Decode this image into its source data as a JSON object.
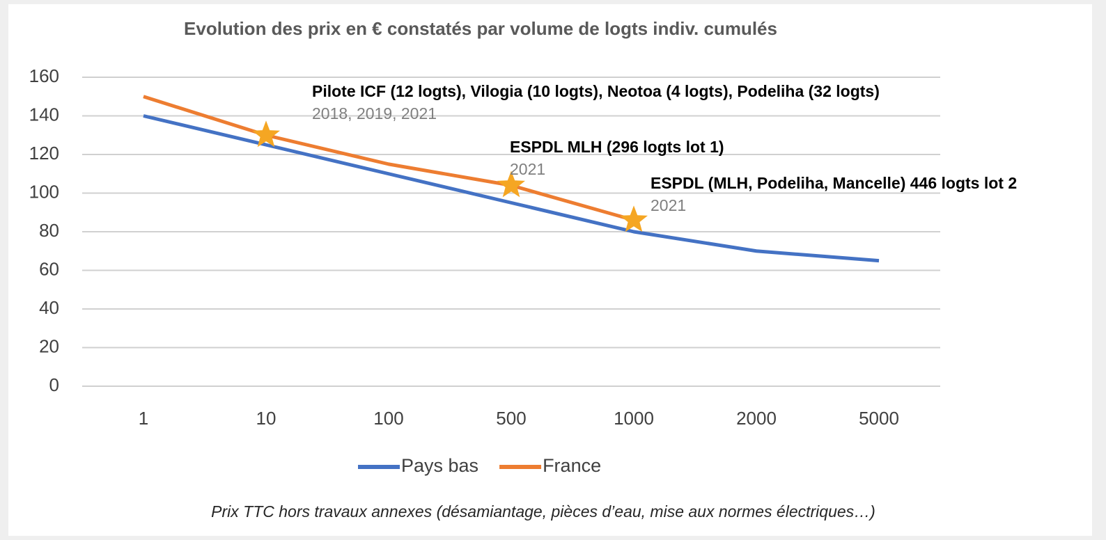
{
  "chart_data": {
    "type": "line",
    "title": "Evolution des prix en € constatés par volume de logts indiv. cumulés",
    "categories": [
      "1",
      "10",
      "100",
      "500",
      "1000",
      "2000",
      "5000"
    ],
    "series": [
      {
        "name": "Pays bas",
        "color": "#4472c4",
        "values": [
          140,
          125,
          110,
          95,
          80,
          70,
          65
        ]
      },
      {
        "name": "France",
        "color": "#ed7d31",
        "values": [
          150,
          130,
          115,
          104,
          86,
          null,
          null
        ]
      }
    ],
    "ylim": [
      0,
      160
    ],
    "yticks": [
      0,
      20,
      40,
      60,
      80,
      100,
      120,
      140,
      160
    ],
    "grid": true,
    "legend": "bottom",
    "annotations": [
      {
        "text": "Pilote ICF (12 logts), Vilogia (10 logts), Neotoa (4 logts), Podeliha (32 logts)",
        "subtext": "2018, 2019, 2021"
      },
      {
        "text": "ESPDL MLH (296 logts lot 1)",
        "subtext": "2021"
      },
      {
        "text": "ESPDL (MLH, Podeliha, Mancelle) 446 logts lot 2",
        "subtext": "2021"
      }
    ],
    "footnote": "Prix TTC hors travaux annexes (désamiantage, pièces d’eau, mise aux normes électriques…)"
  }
}
